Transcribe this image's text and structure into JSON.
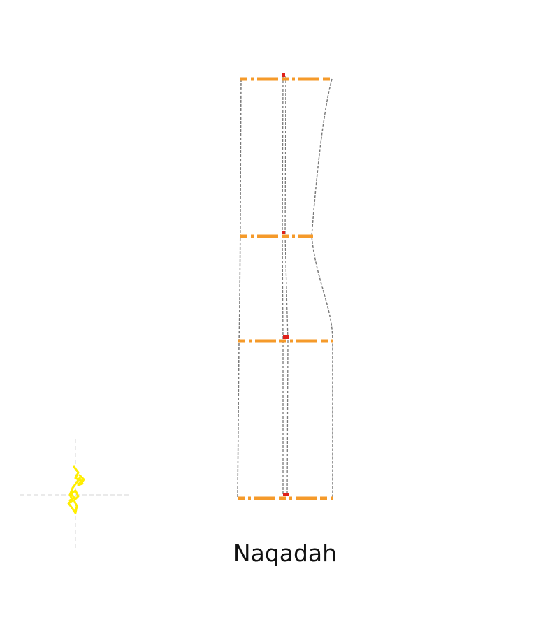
{
  "caption": "Naqadah",
  "colors": {
    "outline": "#7a7a7a",
    "section_lines": "#f59a2a",
    "joint_marks": "#e0201a",
    "marker": "#ffee00",
    "crosshair": "#d6d6d6"
  }
}
